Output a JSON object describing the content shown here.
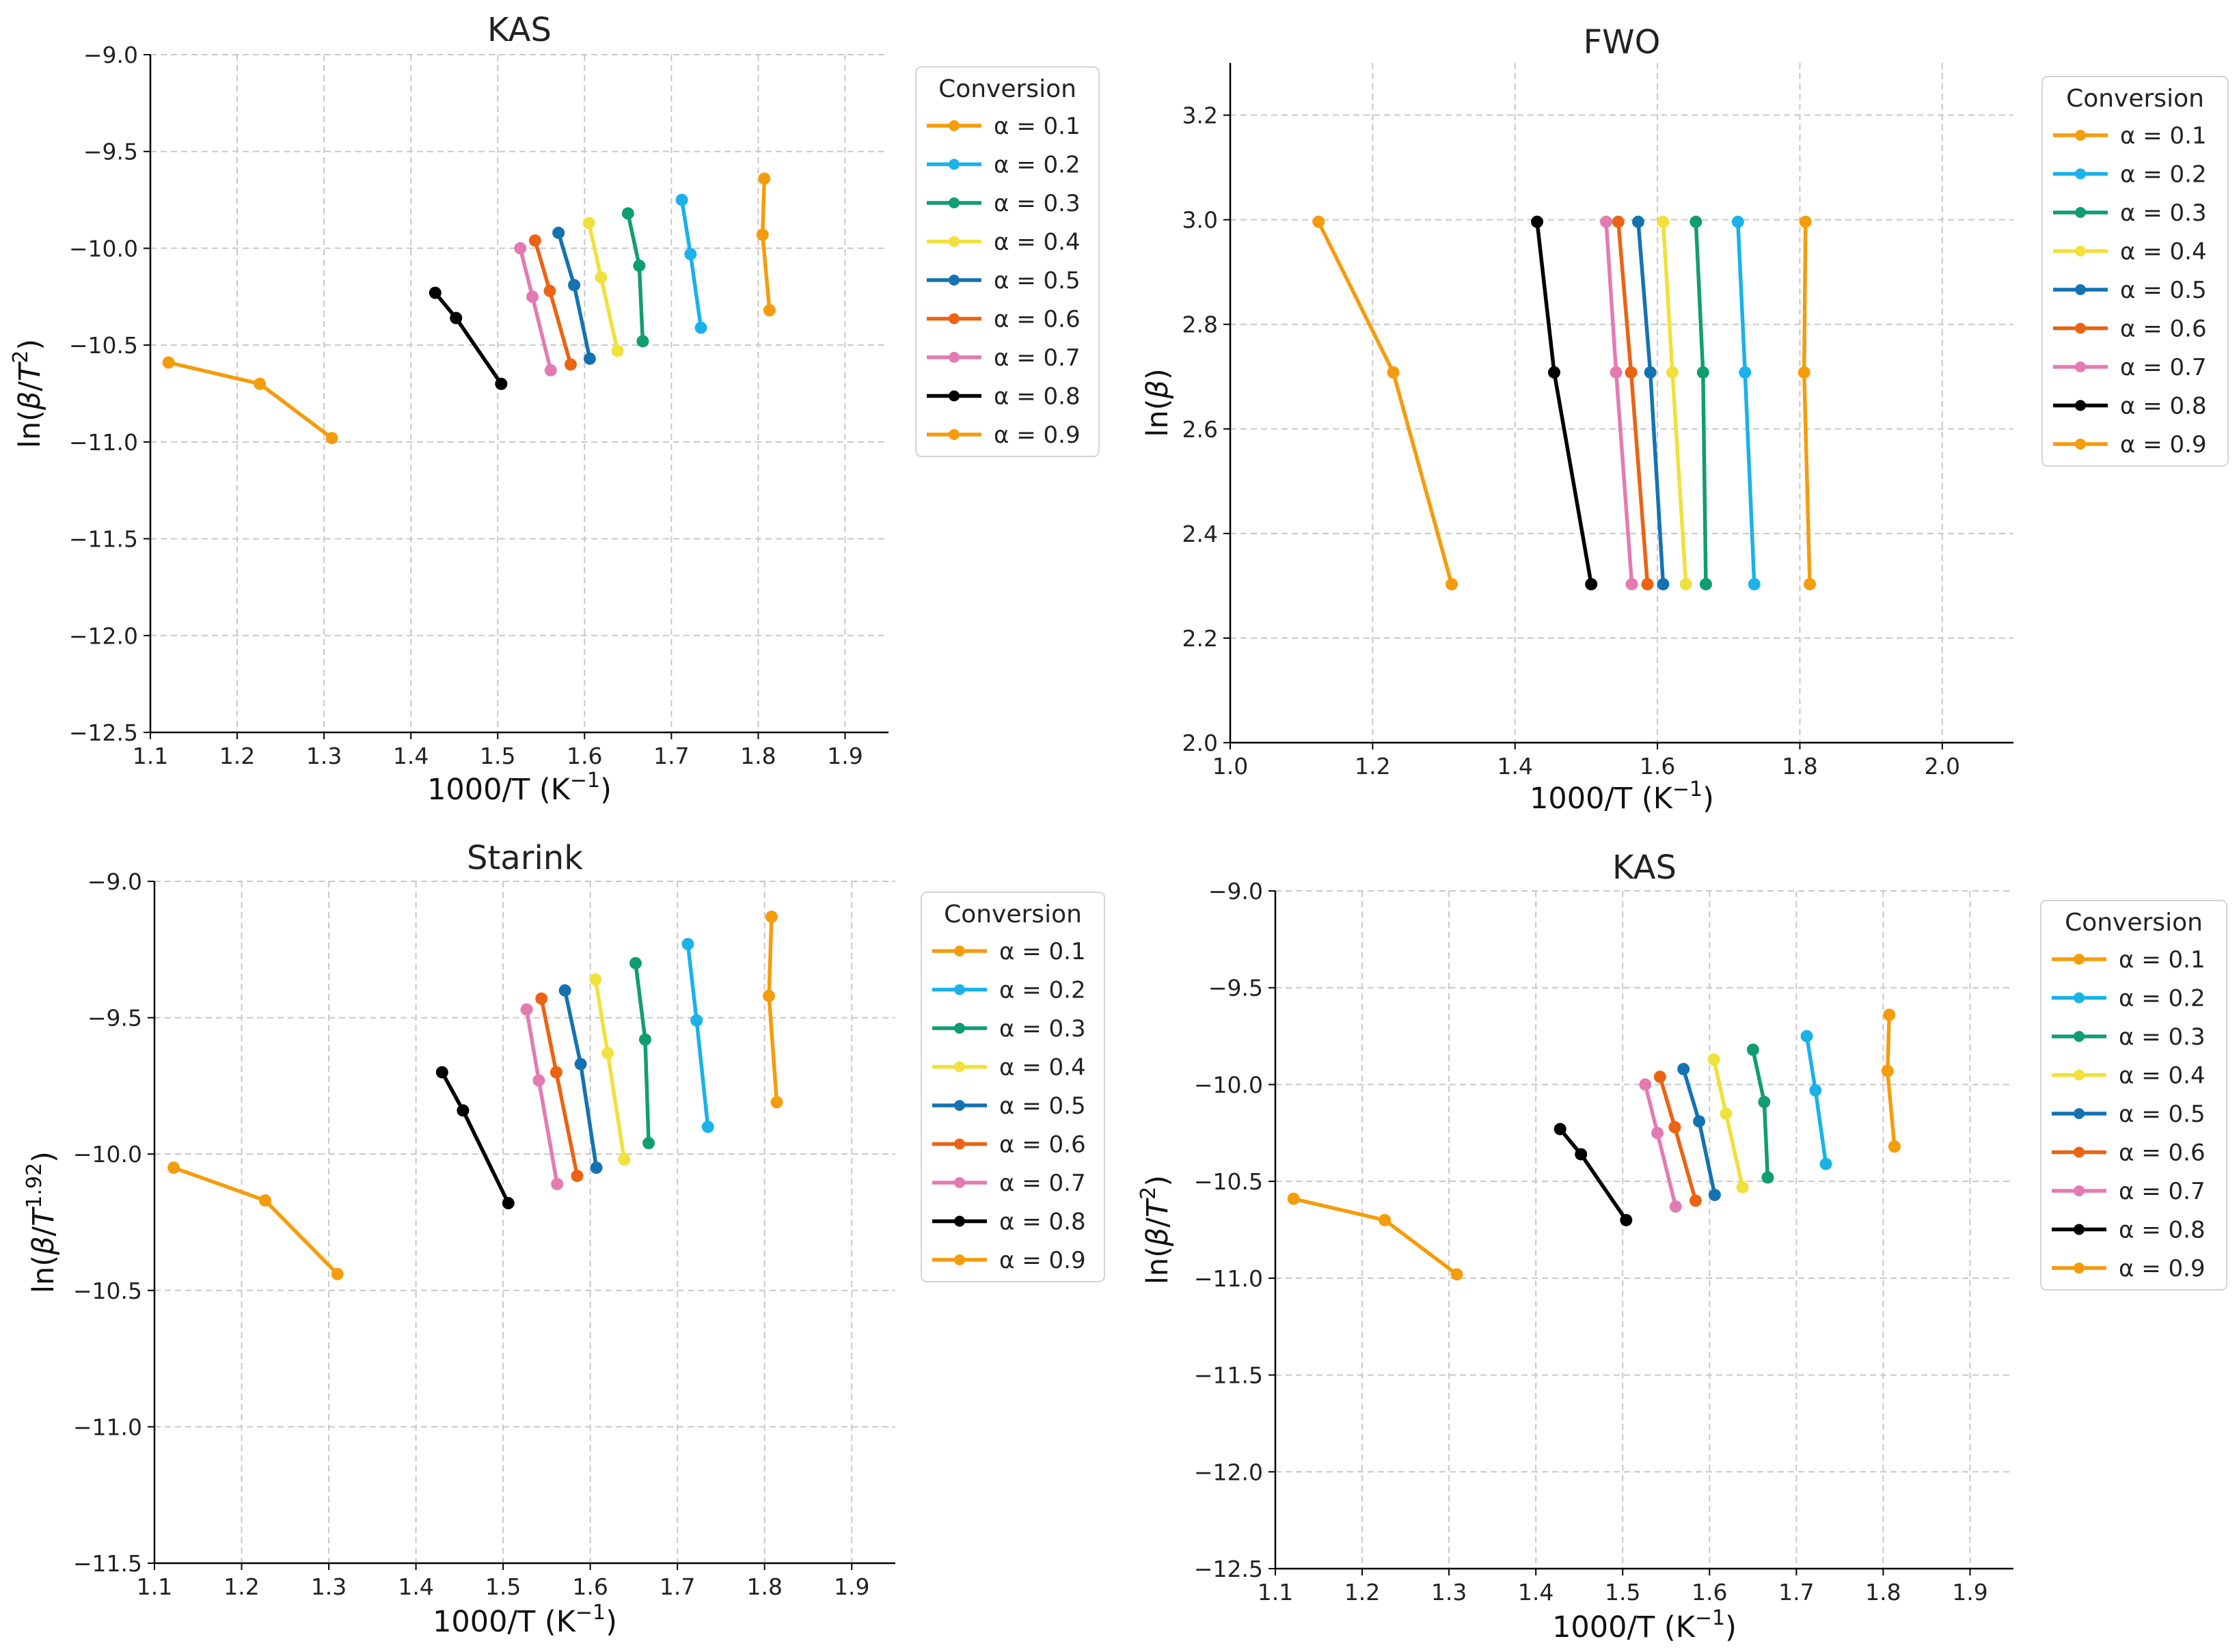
{
  "chart_data": [
    {
      "type": "line",
      "title": "KAS",
      "xlabel": "1000/T (K",
      "xlabel_sup": "−1",
      "xlabel_end": ")",
      "ylabel_pre": "ln(",
      "ylabel_beta": "β",
      "ylabel_slash": "/",
      "ylabel_T": "T",
      "ylabel_sup": "2",
      "ylabel_end": ")",
      "xlim": [
        1.1,
        1.95
      ],
      "ylim": [
        -12.5,
        -9.0
      ],
      "xticks": [
        1.1,
        1.2,
        1.3,
        1.4,
        1.5,
        1.6,
        1.7,
        1.8,
        1.9
      ],
      "xtick_labels": [
        "1.1",
        "1.2",
        "1.3",
        "1.4",
        "1.5",
        "1.6",
        "1.7",
        "1.8",
        "1.9"
      ],
      "yticks": [
        -12.5,
        -12.0,
        -11.5,
        -11.0,
        -10.5,
        -10.0,
        -9.5,
        -9.0
      ],
      "ytick_labels": [
        "−12.5",
        "−12.0",
        "−11.5",
        "−11.0",
        "−10.5",
        "−10.0",
        "−9.5",
        "−9.0"
      ],
      "grid": true,
      "legend_title": "Conversion",
      "legend_position": "outside-right",
      "series": [
        {
          "name": "α = 0.1",
          "color": "#f59c0d",
          "x": [
            1.807,
            1.805,
            1.813
          ],
          "y": [
            -9.64,
            -9.93,
            -10.32
          ]
        },
        {
          "name": "α = 0.2",
          "color": "#1ab2e8",
          "x": [
            1.712,
            1.722,
            1.734
          ],
          "y": [
            -9.75,
            -10.03,
            -10.41
          ]
        },
        {
          "name": "α = 0.3",
          "color": "#119d72",
          "x": [
            1.65,
            1.663,
            1.667
          ],
          "y": [
            -9.82,
            -10.09,
            -10.48
          ]
        },
        {
          "name": "α = 0.4",
          "color": "#f0e13c",
          "x": [
            1.605,
            1.619,
            1.638
          ],
          "y": [
            -9.87,
            -10.15,
            -10.53
          ]
        },
        {
          "name": "α = 0.5",
          "color": "#1572b2",
          "x": [
            1.57,
            1.588,
            1.606
          ],
          "y": [
            -9.92,
            -10.19,
            -10.57
          ]
        },
        {
          "name": "α = 0.6",
          "color": "#eb6313",
          "x": [
            1.543,
            1.56,
            1.584
          ],
          "y": [
            -9.96,
            -10.22,
            -10.6
          ]
        },
        {
          "name": "α = 0.7",
          "color": "#e37bb2",
          "x": [
            1.526,
            1.54,
            1.561
          ],
          "y": [
            -10.0,
            -10.25,
            -10.63
          ]
        },
        {
          "name": "α = 0.8",
          "color": "#000000",
          "x": [
            1.428,
            1.452,
            1.504
          ],
          "y": [
            -10.23,
            -10.36,
            -10.7
          ]
        },
        {
          "name": "α = 0.9",
          "color": "#f59c0d",
          "x": [
            1.121,
            1.226,
            1.309
          ],
          "y": [
            -10.59,
            -10.7,
            -10.98
          ]
        }
      ]
    },
    {
      "type": "line",
      "title": "FWO",
      "xlabel": "1000/T (K",
      "xlabel_sup": "−1",
      "xlabel_end": ")",
      "ylabel_pre": "ln(",
      "ylabel_beta": "β",
      "ylabel_slash": "",
      "ylabel_T": "",
      "ylabel_sup": "",
      "ylabel_end": ")",
      "xlim": [
        1.0,
        2.1
      ],
      "ylim": [
        2.0,
        3.3
      ],
      "xticks": [
        1.0,
        1.2,
        1.4,
        1.6,
        1.8,
        2.0
      ],
      "xtick_labels": [
        "1.0",
        "1.2",
        "1.4",
        "1.6",
        "1.8",
        "2.0"
      ],
      "yticks": [
        2.0,
        2.2,
        2.4,
        2.6,
        2.8,
        3.0,
        3.2
      ],
      "ytick_labels": [
        "2.0",
        "2.2",
        "2.4",
        "2.6",
        "2.8",
        "3.0",
        "3.2"
      ],
      "grid": true,
      "legend_title": "Conversion",
      "legend_position": "outside-right",
      "series": [
        {
          "name": "α = 0.1",
          "color": "#f59c0d",
          "x": [
            1.808,
            1.806,
            1.814
          ],
          "y": [
            2.996,
            2.708,
            2.303
          ]
        },
        {
          "name": "α = 0.2",
          "color": "#1ab2e8",
          "x": [
            1.713,
            1.723,
            1.736
          ],
          "y": [
            2.996,
            2.708,
            2.303
          ]
        },
        {
          "name": "α = 0.3",
          "color": "#119d72",
          "x": [
            1.654,
            1.664,
            1.668
          ],
          "y": [
            2.996,
            2.708,
            2.303
          ]
        },
        {
          "name": "α = 0.4",
          "color": "#f0e13c",
          "x": [
            1.608,
            1.621,
            1.64
          ],
          "y": [
            2.996,
            2.708,
            2.303
          ]
        },
        {
          "name": "α = 0.5",
          "color": "#1572b2",
          "x": [
            1.573,
            1.59,
            1.608
          ],
          "y": [
            2.996,
            2.708,
            2.303
          ]
        },
        {
          "name": "α = 0.6",
          "color": "#eb6313",
          "x": [
            1.545,
            1.563,
            1.586
          ],
          "y": [
            2.996,
            2.708,
            2.303
          ]
        },
        {
          "name": "α = 0.7",
          "color": "#e37bb2",
          "x": [
            1.528,
            1.542,
            1.564
          ],
          "y": [
            2.996,
            2.708,
            2.303
          ]
        },
        {
          "name": "α = 0.8",
          "color": "#000000",
          "x": [
            1.431,
            1.455,
            1.507
          ],
          "y": [
            2.996,
            2.708,
            2.303
          ]
        },
        {
          "name": "α = 0.9",
          "color": "#f59c0d",
          "x": [
            1.124,
            1.229,
            1.311
          ],
          "y": [
            2.996,
            2.708,
            2.303
          ]
        }
      ]
    },
    {
      "type": "line",
      "title": "Starink",
      "xlabel": "1000/T (K",
      "xlabel_sup": "−1",
      "xlabel_end": ")",
      "ylabel_pre": "ln(",
      "ylabel_beta": "β",
      "ylabel_slash": "/",
      "ylabel_T": "T",
      "ylabel_sup": "1.92",
      "ylabel_end": ")",
      "xlim": [
        1.1,
        1.95
      ],
      "ylim": [
        -11.5,
        -9.0
      ],
      "xticks": [
        1.1,
        1.2,
        1.3,
        1.4,
        1.5,
        1.6,
        1.7,
        1.8,
        1.9
      ],
      "xtick_labels": [
        "1.1",
        "1.2",
        "1.3",
        "1.4",
        "1.5",
        "1.6",
        "1.7",
        "1.8",
        "1.9"
      ],
      "yticks": [
        -11.5,
        -11.0,
        -10.5,
        -10.0,
        -9.5,
        -9.0
      ],
      "ytick_labels": [
        "−11.5",
        "−11.0",
        "−10.5",
        "−10.0",
        "−9.5",
        "−9.0"
      ],
      "grid": true,
      "legend_title": "Conversion",
      "legend_position": "outside-right",
      "series": [
        {
          "name": "α = 0.1",
          "color": "#f59c0d",
          "x": [
            1.808,
            1.805,
            1.814
          ],
          "y": [
            -9.13,
            -9.42,
            -9.81
          ]
        },
        {
          "name": "α = 0.2",
          "color": "#1ab2e8",
          "x": [
            1.712,
            1.722,
            1.735
          ],
          "y": [
            -9.23,
            -9.51,
            -9.9
          ]
        },
        {
          "name": "α = 0.3",
          "color": "#119d72",
          "x": [
            1.652,
            1.663,
            1.667
          ],
          "y": [
            -9.3,
            -9.58,
            -9.96
          ]
        },
        {
          "name": "α = 0.4",
          "color": "#f0e13c",
          "x": [
            1.606,
            1.62,
            1.639
          ],
          "y": [
            -9.36,
            -9.63,
            -10.02
          ]
        },
        {
          "name": "α = 0.5",
          "color": "#1572b2",
          "x": [
            1.571,
            1.589,
            1.607
          ],
          "y": [
            -9.4,
            -9.67,
            -10.05
          ]
        },
        {
          "name": "α = 0.6",
          "color": "#eb6313",
          "x": [
            1.544,
            1.561,
            1.585
          ],
          "y": [
            -9.43,
            -9.7,
            -10.08
          ]
        },
        {
          "name": "α = 0.7",
          "color": "#e37bb2",
          "x": [
            1.527,
            1.541,
            1.562
          ],
          "y": [
            -9.47,
            -9.73,
            -10.11
          ]
        },
        {
          "name": "α = 0.8",
          "color": "#000000",
          "x": [
            1.43,
            1.454,
            1.506
          ],
          "y": [
            -9.7,
            -9.84,
            -10.18
          ]
        },
        {
          "name": "α = 0.9",
          "color": "#f59c0d",
          "x": [
            1.122,
            1.227,
            1.31
          ],
          "y": [
            -10.05,
            -10.17,
            -10.44
          ]
        }
      ]
    },
    {
      "type": "line",
      "title": "KAS",
      "xlabel": "1000/T (K",
      "xlabel_sup": "−1",
      "xlabel_end": ")",
      "ylabel_pre": "ln(",
      "ylabel_beta": "β",
      "ylabel_slash": "/",
      "ylabel_T": "T",
      "ylabel_sup": "2",
      "ylabel_end": ")",
      "xlim": [
        1.1,
        1.95
      ],
      "ylim": [
        -12.5,
        -9.0
      ],
      "xticks": [
        1.1,
        1.2,
        1.3,
        1.4,
        1.5,
        1.6,
        1.7,
        1.8,
        1.9
      ],
      "xtick_labels": [
        "1.1",
        "1.2",
        "1.3",
        "1.4",
        "1.5",
        "1.6",
        "1.7",
        "1.8",
        "1.9"
      ],
      "yticks": [
        -12.5,
        -12.0,
        -11.5,
        -11.0,
        -10.5,
        -10.0,
        -9.5,
        -9.0
      ],
      "ytick_labels": [
        "−12.5",
        "−12.0",
        "−11.5",
        "−11.0",
        "−10.5",
        "−10.0",
        "−9.5",
        "−9.0"
      ],
      "grid": true,
      "legend_title": "Conversion",
      "legend_position": "outside-right",
      "series": [
        {
          "name": "α = 0.1",
          "color": "#f59c0d",
          "x": [
            1.807,
            1.805,
            1.813
          ],
          "y": [
            -9.64,
            -9.93,
            -10.32
          ]
        },
        {
          "name": "α = 0.2",
          "color": "#1ab2e8",
          "x": [
            1.712,
            1.722,
            1.734
          ],
          "y": [
            -9.75,
            -10.03,
            -10.41
          ]
        },
        {
          "name": "α = 0.3",
          "color": "#119d72",
          "x": [
            1.65,
            1.663,
            1.667
          ],
          "y": [
            -9.82,
            -10.09,
            -10.48
          ]
        },
        {
          "name": "α = 0.4",
          "color": "#f0e13c",
          "x": [
            1.605,
            1.619,
            1.638
          ],
          "y": [
            -9.87,
            -10.15,
            -10.53
          ]
        },
        {
          "name": "α = 0.5",
          "color": "#1572b2",
          "x": [
            1.57,
            1.588,
            1.606
          ],
          "y": [
            -9.92,
            -10.19,
            -10.57
          ]
        },
        {
          "name": "α = 0.6",
          "color": "#eb6313",
          "x": [
            1.543,
            1.56,
            1.584
          ],
          "y": [
            -9.96,
            -10.22,
            -10.6
          ]
        },
        {
          "name": "α = 0.7",
          "color": "#e37bb2",
          "x": [
            1.526,
            1.54,
            1.561
          ],
          "y": [
            -10.0,
            -10.25,
            -10.63
          ]
        },
        {
          "name": "α = 0.8",
          "color": "#000000",
          "x": [
            1.428,
            1.452,
            1.504
          ],
          "y": [
            -10.23,
            -10.36,
            -10.7
          ]
        },
        {
          "name": "α = 0.9",
          "color": "#f59c0d",
          "x": [
            1.121,
            1.226,
            1.309
          ],
          "y": [
            -10.59,
            -10.7,
            -10.98
          ]
        }
      ]
    }
  ]
}
